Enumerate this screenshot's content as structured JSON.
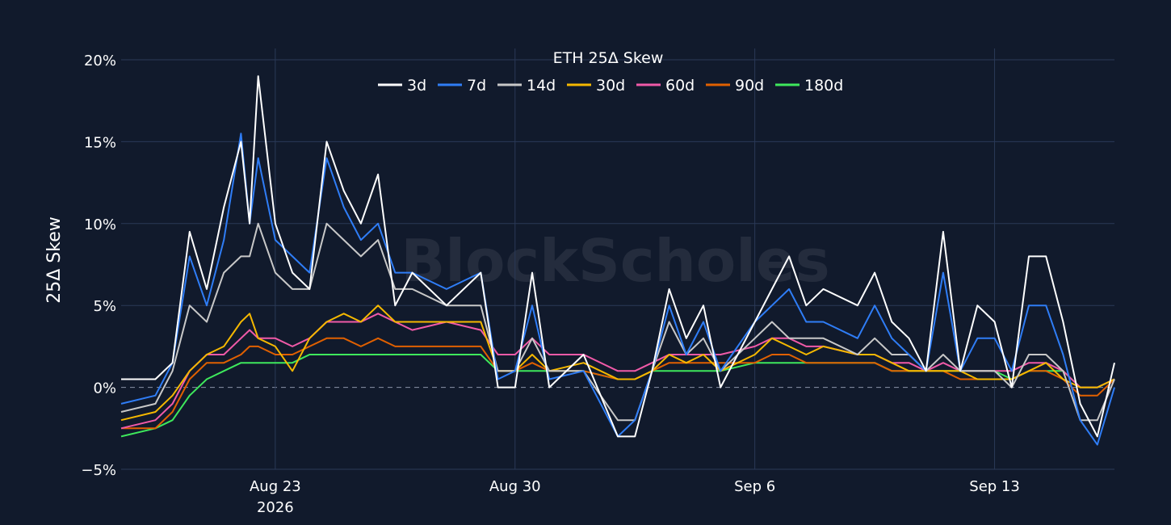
{
  "watermark": "BlockScholes",
  "chart_data": {
    "type": "line",
    "title": "ETH 25Δ Skew",
    "ylabel": "25Δ Skew",
    "xlabel": "",
    "ylim": [
      -5,
      20
    ],
    "yticks": [
      -5,
      0,
      5,
      10,
      15,
      20
    ],
    "ytick_labels": [
      "−5%",
      "0%",
      "5%",
      "10%",
      "15%",
      "20%"
    ],
    "xlim": [
      "2026-08-18 12:00",
      "2026-09-16 12:00"
    ],
    "xticks": [
      "2026-08-23",
      "2026-08-30",
      "2026-09-06",
      "2026-09-13"
    ],
    "xtick_labels": [
      "Aug 23",
      "Aug 30",
      "Sep 6",
      "Sep 13"
    ],
    "year_label": "2026",
    "grid": true,
    "legend": "top-center",
    "series": [
      {
        "name": "3d",
        "color": "#ffffff",
        "x": [
          "2026-08-18 12:00",
          "2026-08-19 12:00",
          "2026-08-20 00:00",
          "2026-08-20 12:00",
          "2026-08-21 00:00",
          "2026-08-21 12:00",
          "2026-08-22 00:00",
          "2026-08-22 06:00",
          "2026-08-22 12:00",
          "2026-08-23 00:00",
          "2026-08-23 12:00",
          "2026-08-24 00:00",
          "2026-08-24 12:00",
          "2026-08-25 00:00",
          "2026-08-25 12:00",
          "2026-08-26 00:00",
          "2026-08-26 12:00",
          "2026-08-27 00:00",
          "2026-08-28 00:00",
          "2026-08-29 00:00",
          "2026-08-29 12:00",
          "2026-08-30 00:00",
          "2026-08-30 12:00",
          "2026-08-31 00:00",
          "2026-09-01 00:00",
          "2026-09-02 00:00",
          "2026-09-02 12:00",
          "2026-09-03 00:00",
          "2026-09-03 12:00",
          "2026-09-04 00:00",
          "2026-09-04 12:00",
          "2026-09-05 00:00",
          "2026-09-06 00:00",
          "2026-09-06 12:00",
          "2026-09-07 00:00",
          "2026-09-07 12:00",
          "2026-09-08 00:00",
          "2026-09-09 00:00",
          "2026-09-09 12:00",
          "2026-09-10 00:00",
          "2026-09-10 12:00",
          "2026-09-11 00:00",
          "2026-09-11 12:00",
          "2026-09-12 00:00",
          "2026-09-12 12:00",
          "2026-09-13 00:00",
          "2026-09-13 12:00",
          "2026-09-14 00:00",
          "2026-09-14 12:00",
          "2026-09-15 00:00",
          "2026-09-15 12:00",
          "2026-09-16 00:00",
          "2026-09-16 12:00"
        ],
        "y": [
          0.5,
          0.5,
          1.5,
          9.5,
          6,
          11,
          15,
          10,
          19,
          10,
          7,
          6,
          15,
          12,
          10,
          13,
          5,
          7,
          5,
          7,
          0,
          0,
          7,
          0,
          2,
          -3,
          -3,
          1,
          6,
          3,
          5,
          0,
          4,
          6,
          8,
          5,
          6,
          5,
          7,
          4,
          3,
          1,
          9.5,
          1,
          5,
          4,
          0,
          8,
          8,
          4,
          -1,
          -3,
          1.5
        ]
      },
      {
        "name": "7d",
        "color": "#2f7df6",
        "x": [
          "2026-08-18 12:00",
          "2026-08-19 12:00",
          "2026-08-20 00:00",
          "2026-08-20 12:00",
          "2026-08-21 00:00",
          "2026-08-21 12:00",
          "2026-08-22 00:00",
          "2026-08-22 06:00",
          "2026-08-22 12:00",
          "2026-08-23 00:00",
          "2026-08-23 12:00",
          "2026-08-24 00:00",
          "2026-08-24 12:00",
          "2026-08-25 00:00",
          "2026-08-25 12:00",
          "2026-08-26 00:00",
          "2026-08-26 12:00",
          "2026-08-27 00:00",
          "2026-08-28 00:00",
          "2026-08-29 00:00",
          "2026-08-29 12:00",
          "2026-08-30 00:00",
          "2026-08-30 12:00",
          "2026-08-31 00:00",
          "2026-09-01 00:00",
          "2026-09-02 00:00",
          "2026-09-02 12:00",
          "2026-09-03 00:00",
          "2026-09-03 12:00",
          "2026-09-04 00:00",
          "2026-09-04 12:00",
          "2026-09-05 00:00",
          "2026-09-06 00:00",
          "2026-09-06 12:00",
          "2026-09-07 00:00",
          "2026-09-07 12:00",
          "2026-09-08 00:00",
          "2026-09-09 00:00",
          "2026-09-09 12:00",
          "2026-09-10 00:00",
          "2026-09-10 12:00",
          "2026-09-11 00:00",
          "2026-09-11 12:00",
          "2026-09-12 00:00",
          "2026-09-12 12:00",
          "2026-09-13 00:00",
          "2026-09-13 12:00",
          "2026-09-14 00:00",
          "2026-09-14 12:00",
          "2026-09-15 00:00",
          "2026-09-15 12:00",
          "2026-09-16 00:00",
          "2026-09-16 12:00"
        ],
        "y": [
          -1,
          -0.5,
          1.5,
          8,
          5,
          9,
          15.5,
          10,
          14,
          9,
          8,
          7,
          14,
          11,
          9,
          10,
          7,
          7,
          6,
          7,
          0.5,
          1,
          5,
          0.5,
          1,
          -3,
          -2,
          1,
          5,
          2,
          4,
          1,
          4,
          5,
          6,
          4,
          4,
          3,
          5,
          3,
          2,
          1,
          7,
          1,
          3,
          3,
          1,
          5,
          5,
          2,
          -2,
          -3.5,
          0
        ]
      },
      {
        "name": "14d",
        "color": "#c8c8c8",
        "x": [
          "2026-08-18 12:00",
          "2026-08-19 12:00",
          "2026-08-20 00:00",
          "2026-08-20 12:00",
          "2026-08-21 00:00",
          "2026-08-21 12:00",
          "2026-08-22 00:00",
          "2026-08-22 06:00",
          "2026-08-22 12:00",
          "2026-08-23 00:00",
          "2026-08-23 12:00",
          "2026-08-24 00:00",
          "2026-08-24 12:00",
          "2026-08-25 00:00",
          "2026-08-25 12:00",
          "2026-08-26 00:00",
          "2026-08-26 12:00",
          "2026-08-27 00:00",
          "2026-08-28 00:00",
          "2026-08-29 00:00",
          "2026-08-29 12:00",
          "2026-08-30 00:00",
          "2026-08-30 12:00",
          "2026-08-31 00:00",
          "2026-09-01 00:00",
          "2026-09-02 00:00",
          "2026-09-02 12:00",
          "2026-09-03 00:00",
          "2026-09-03 12:00",
          "2026-09-04 00:00",
          "2026-09-04 12:00",
          "2026-09-05 00:00",
          "2026-09-06 00:00",
          "2026-09-06 12:00",
          "2026-09-07 00:00",
          "2026-09-07 12:00",
          "2026-09-08 00:00",
          "2026-09-09 00:00",
          "2026-09-09 12:00",
          "2026-09-10 00:00",
          "2026-09-10 12:00",
          "2026-09-11 00:00",
          "2026-09-11 12:00",
          "2026-09-12 00:00",
          "2026-09-12 12:00",
          "2026-09-13 00:00",
          "2026-09-13 12:00",
          "2026-09-14 00:00",
          "2026-09-14 12:00",
          "2026-09-15 00:00",
          "2026-09-15 12:00",
          "2026-09-16 00:00",
          "2026-09-16 12:00"
        ],
        "y": [
          -1.5,
          -1,
          1,
          5,
          4,
          7,
          8,
          8,
          10,
          7,
          6,
          6,
          10,
          9,
          8,
          9,
          6,
          6,
          5,
          5,
          1,
          1,
          3,
          1,
          1,
          -2,
          -2,
          1,
          4,
          2,
          3,
          1,
          3,
          4,
          3,
          3,
          3,
          2,
          3,
          2,
          2,
          1,
          2,
          1,
          1,
          1,
          0,
          2,
          2,
          1,
          -2,
          -2,
          0.5
        ]
      },
      {
        "name": "30d",
        "color": "#f5b800",
        "x": [
          "2026-08-18 12:00",
          "2026-08-19 12:00",
          "2026-08-20 00:00",
          "2026-08-20 12:00",
          "2026-08-21 00:00",
          "2026-08-21 12:00",
          "2026-08-22 00:00",
          "2026-08-22 06:00",
          "2026-08-22 12:00",
          "2026-08-23 00:00",
          "2026-08-23 12:00",
          "2026-08-24 00:00",
          "2026-08-24 12:00",
          "2026-08-25 00:00",
          "2026-08-25 12:00",
          "2026-08-26 00:00",
          "2026-08-26 12:00",
          "2026-08-27 00:00",
          "2026-08-28 00:00",
          "2026-08-29 00:00",
          "2026-08-29 12:00",
          "2026-08-30 00:00",
          "2026-08-30 12:00",
          "2026-08-31 00:00",
          "2026-09-01 00:00",
          "2026-09-02 00:00",
          "2026-09-02 12:00",
          "2026-09-03 00:00",
          "2026-09-03 12:00",
          "2026-09-04 00:00",
          "2026-09-04 12:00",
          "2026-09-05 00:00",
          "2026-09-06 00:00",
          "2026-09-06 12:00",
          "2026-09-07 00:00",
          "2026-09-07 12:00",
          "2026-09-08 00:00",
          "2026-09-09 00:00",
          "2026-09-09 12:00",
          "2026-09-10 00:00",
          "2026-09-10 12:00",
          "2026-09-11 00:00",
          "2026-09-11 12:00",
          "2026-09-12 00:00",
          "2026-09-12 12:00",
          "2026-09-13 00:00",
          "2026-09-13 12:00",
          "2026-09-14 00:00",
          "2026-09-14 12:00",
          "2026-09-15 00:00",
          "2026-09-15 12:00",
          "2026-09-16 00:00",
          "2026-09-16 12:00"
        ],
        "y": [
          -2,
          -1.5,
          -0.5,
          1,
          2,
          2.5,
          4,
          4.5,
          3,
          2.5,
          1,
          3,
          4,
          4.5,
          4,
          5,
          4,
          4,
          4,
          4,
          1,
          1,
          2,
          1,
          1.5,
          0.5,
          0.5,
          1,
          2,
          1.5,
          2,
          1,
          2,
          3,
          2.5,
          2,
          2.5,
          2,
          2,
          1.5,
          1,
          1,
          1,
          1,
          0.5,
          0.5,
          0.5,
          1,
          1.5,
          0.5,
          0,
          0,
          0.5
        ]
      },
      {
        "name": "60d",
        "color": "#f05aa8",
        "x": [
          "2026-08-18 12:00",
          "2026-08-19 12:00",
          "2026-08-20 00:00",
          "2026-08-20 12:00",
          "2026-08-21 00:00",
          "2026-08-21 12:00",
          "2026-08-22 00:00",
          "2026-08-22 06:00",
          "2026-08-22 12:00",
          "2026-08-23 00:00",
          "2026-08-23 12:00",
          "2026-08-24 00:00",
          "2026-08-24 12:00",
          "2026-08-25 00:00",
          "2026-08-25 12:00",
          "2026-08-26 00:00",
          "2026-08-26 12:00",
          "2026-08-27 00:00",
          "2026-08-28 00:00",
          "2026-08-29 00:00",
          "2026-08-29 12:00",
          "2026-08-30 00:00",
          "2026-08-30 12:00",
          "2026-08-31 00:00",
          "2026-09-01 00:00",
          "2026-09-02 00:00",
          "2026-09-02 12:00",
          "2026-09-03 00:00",
          "2026-09-03 12:00",
          "2026-09-04 00:00",
          "2026-09-04 12:00",
          "2026-09-05 00:00",
          "2026-09-06 00:00",
          "2026-09-06 12:00",
          "2026-09-07 00:00",
          "2026-09-07 12:00",
          "2026-09-08 00:00",
          "2026-09-09 00:00",
          "2026-09-09 12:00",
          "2026-09-10 00:00",
          "2026-09-10 12:00",
          "2026-09-11 00:00",
          "2026-09-11 12:00",
          "2026-09-12 00:00",
          "2026-09-12 12:00",
          "2026-09-13 00:00",
          "2026-09-13 12:00",
          "2026-09-14 00:00",
          "2026-09-14 12:00",
          "2026-09-15 00:00",
          "2026-09-15 12:00",
          "2026-09-16 00:00",
          "2026-09-16 12:00"
        ],
        "y": [
          -2.5,
          -2,
          -1,
          1,
          2,
          2,
          3,
          3.5,
          3,
          3,
          2.5,
          3,
          4,
          4,
          4,
          4.5,
          4,
          3.5,
          4,
          3.5,
          2,
          2,
          3,
          2,
          2,
          1,
          1,
          1.5,
          2,
          2,
          2,
          2,
          2.5,
          3,
          3,
          2.5,
          2.5,
          2,
          2,
          1.5,
          1.5,
          1,
          1.5,
          1,
          1,
          1,
          1,
          1.5,
          1.5,
          1,
          0,
          0,
          0.5
        ]
      },
      {
        "name": "90d",
        "color": "#e06000",
        "x": [
          "2026-08-18 12:00",
          "2026-08-19 12:00",
          "2026-08-20 00:00",
          "2026-08-20 12:00",
          "2026-08-21 00:00",
          "2026-08-21 12:00",
          "2026-08-22 00:00",
          "2026-08-22 06:00",
          "2026-08-22 12:00",
          "2026-08-23 00:00",
          "2026-08-23 12:00",
          "2026-08-24 00:00",
          "2026-08-24 12:00",
          "2026-08-25 00:00",
          "2026-08-25 12:00",
          "2026-08-26 00:00",
          "2026-08-26 12:00",
          "2026-08-27 00:00",
          "2026-08-28 00:00",
          "2026-08-29 00:00",
          "2026-08-29 12:00",
          "2026-08-30 00:00",
          "2026-08-30 12:00",
          "2026-08-31 00:00",
          "2026-09-01 00:00",
          "2026-09-02 00:00",
          "2026-09-02 12:00",
          "2026-09-03 00:00",
          "2026-09-03 12:00",
          "2026-09-04 00:00",
          "2026-09-04 12:00",
          "2026-09-05 00:00",
          "2026-09-06 00:00",
          "2026-09-06 12:00",
          "2026-09-07 00:00",
          "2026-09-07 12:00",
          "2026-09-08 00:00",
          "2026-09-09 00:00",
          "2026-09-09 12:00",
          "2026-09-10 00:00",
          "2026-09-10 12:00",
          "2026-09-11 00:00",
          "2026-09-11 12:00",
          "2026-09-12 00:00",
          "2026-09-12 12:00",
          "2026-09-13 00:00",
          "2026-09-13 12:00",
          "2026-09-14 00:00",
          "2026-09-14 12:00",
          "2026-09-15 00:00",
          "2026-09-15 12:00",
          "2026-09-16 00:00",
          "2026-09-16 12:00"
        ],
        "y": [
          -2.5,
          -2.5,
          -1.5,
          0.5,
          1.5,
          1.5,
          2,
          2.5,
          2.5,
          2,
          2,
          2.5,
          3,
          3,
          2.5,
          3,
          2.5,
          2.5,
          2.5,
          2.5,
          1,
          1,
          1.5,
          1,
          1,
          0.5,
          0.5,
          1,
          1.5,
          1.5,
          1.5,
          1.5,
          1.5,
          2,
          2,
          1.5,
          1.5,
          1.5,
          1.5,
          1,
          1,
          1,
          1,
          0.5,
          0.5,
          0.5,
          0.5,
          1,
          1,
          0.5,
          -0.5,
          -0.5,
          0.5
        ]
      },
      {
        "name": "180d",
        "color": "#3ee85c",
        "x": [
          "2026-08-18 12:00",
          "2026-08-19 12:00",
          "2026-08-20 00:00",
          "2026-08-20 12:00",
          "2026-08-21 00:00",
          "2026-08-21 12:00",
          "2026-08-22 00:00",
          "2026-08-22 06:00",
          "2026-08-22 12:00",
          "2026-08-23 00:00",
          "2026-08-23 12:00",
          "2026-08-24 00:00",
          "2026-08-24 12:00",
          "2026-08-25 00:00",
          "2026-08-25 12:00",
          "2026-08-26 00:00",
          "2026-08-26 12:00",
          "2026-08-27 00:00",
          "2026-08-28 00:00",
          "2026-08-29 00:00",
          "2026-08-29 12:00",
          "2026-08-30 00:00",
          "2026-08-30 12:00",
          "2026-08-31 00:00",
          "2026-09-01 00:00",
          "2026-09-02 00:00",
          "2026-09-02 12:00",
          "2026-09-03 00:00",
          "2026-09-03 12:00",
          "2026-09-04 00:00",
          "2026-09-04 12:00",
          "2026-09-05 00:00",
          "2026-09-06 00:00",
          "2026-09-06 12:00",
          "2026-09-07 00:00",
          "2026-09-07 12:00",
          "2026-09-08 00:00",
          "2026-09-09 00:00",
          "2026-09-09 12:00",
          "2026-09-10 00:00",
          "2026-09-10 12:00",
          "2026-09-11 00:00",
          "2026-09-11 12:00",
          "2026-09-12 00:00",
          "2026-09-12 12:00",
          "2026-09-13 00:00",
          "2026-09-13 12:00",
          "2026-09-14 00:00",
          "2026-09-14 12:00",
          "2026-09-15 00:00",
          "2026-09-15 12:00",
          "2026-09-16 00:00",
          "2026-09-16 12:00"
        ],
        "y": [
          -3,
          -2.5,
          -2,
          -0.5,
          0.5,
          1,
          1.5,
          1.5,
          1.5,
          1.5,
          1.5,
          2,
          2,
          2,
          2,
          2,
          2,
          2,
          2,
          2,
          1,
          1,
          1,
          1,
          1,
          0.5,
          0.5,
          1,
          1,
          1,
          1,
          1,
          1.5,
          1.5,
          1.5,
          1.5,
          1.5,
          1.5,
          1.5,
          1,
          1,
          1,
          1,
          1,
          1,
          1,
          0.5,
          1,
          1,
          1,
          0,
          0,
          0.5
        ]
      }
    ]
  }
}
